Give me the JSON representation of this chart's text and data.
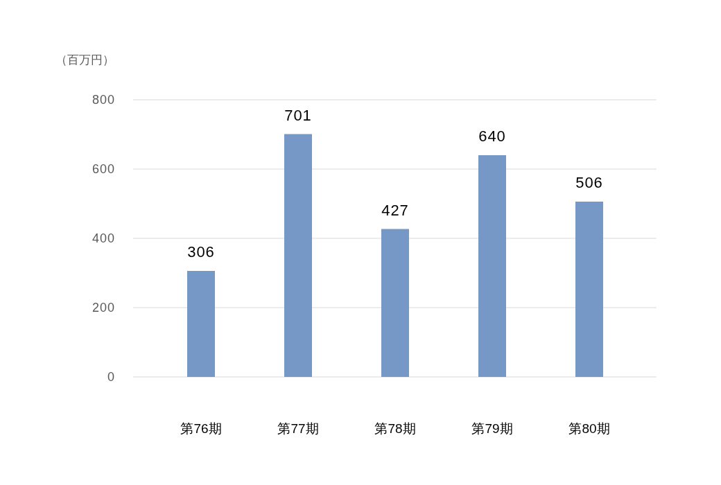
{
  "chart_data": {
    "type": "bar",
    "ylabel": "（百万円）",
    "categories": [
      "第76期",
      "第77期",
      "第78期",
      "第79期",
      "第80期"
    ],
    "values": [
      306,
      701,
      427,
      640,
      506
    ],
    "color": "#7698c6",
    "ylim": [
      0,
      800
    ],
    "yticks": [
      0,
      200,
      400,
      600,
      800
    ],
    "grid": "y",
    "data_labels": true
  }
}
